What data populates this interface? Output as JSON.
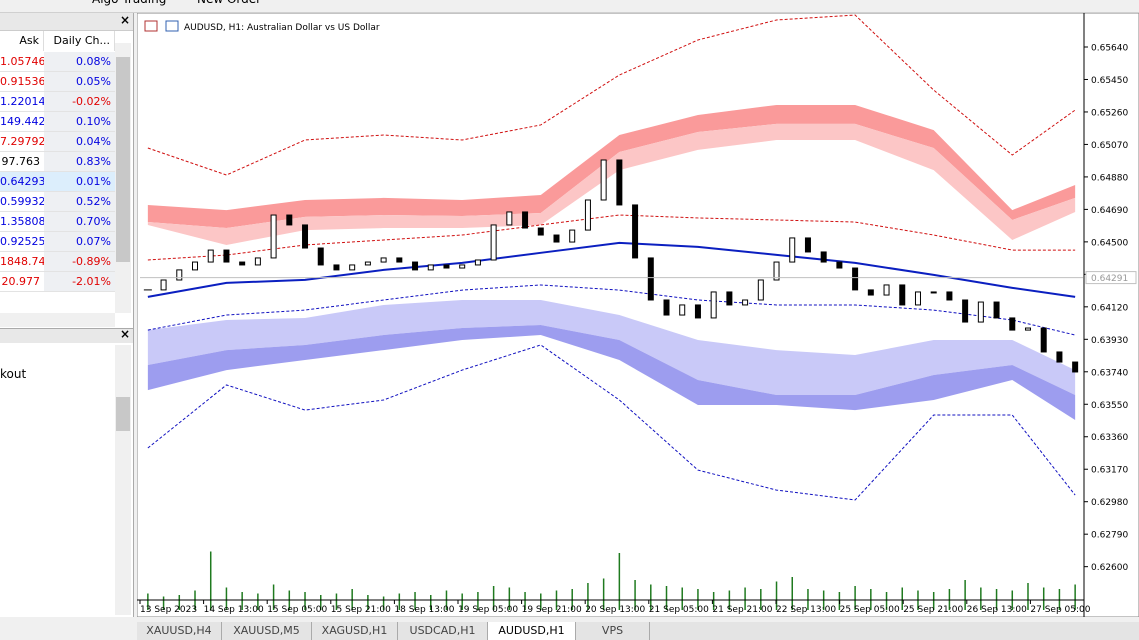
{
  "toolbar": {
    "buttons": [
      "Algo Trading",
      "New Order"
    ]
  },
  "market_watch": {
    "columns": [
      "Ask",
      "Daily Ch..."
    ],
    "selected_row": 6,
    "rows": [
      {
        "ask": "1.05746",
        "change": "0.08%",
        "ask_color": "#e00000",
        "change_color": "#0000e0"
      },
      {
        "ask": "0.91536",
        "change": "0.05%",
        "ask_color": "#e00000",
        "change_color": "#0000e0"
      },
      {
        "ask": "1.22014",
        "change": "-0.02%",
        "ask_color": "#0000e0",
        "change_color": "#e00000"
      },
      {
        "ask": "149.442",
        "change": "0.10%",
        "ask_color": "#0000e0",
        "change_color": "#0000e0"
      },
      {
        "ask": "7.29792",
        "change": "0.04%",
        "ask_color": "#e00000",
        "change_color": "#0000e0"
      },
      {
        "ask": "97.763",
        "change": "0.83%",
        "ask_color": "#000000",
        "change_color": "#0000e0"
      },
      {
        "ask": "0.64293",
        "change": "0.01%",
        "ask_color": "#0000e0",
        "change_color": "#0000e0"
      },
      {
        "ask": "0.59932",
        "change": "0.52%",
        "ask_color": "#0000e0",
        "change_color": "#0000e0"
      },
      {
        "ask": "1.35808",
        "change": "0.70%",
        "ask_color": "#0000e0",
        "change_color": "#0000e0"
      },
      {
        "ask": "0.92525",
        "change": "0.07%",
        "ask_color": "#0000e0",
        "change_color": "#0000e0"
      },
      {
        "ask": "1848.74",
        "change": "-0.89%",
        "ask_color": "#e00000",
        "change_color": "#e00000"
      },
      {
        "ask": "20.977",
        "change": "-2.01%",
        "ask_color": "#e00000",
        "change_color": "#e00000"
      }
    ]
  },
  "navigator": {
    "item": "kout"
  },
  "tabs": {
    "items": [
      "XAUUSD,H4",
      "XAUUSD,M5",
      "XAGUSD,H1",
      "USDCAD,H1",
      "AUDUSD,H1",
      "VPS"
    ],
    "active": 4
  },
  "chart_data": {
    "type": "candlestick",
    "title": "AUDUSD, H1:  Australian Dollar vs US Dollar",
    "ylim": [
      0.62405,
      0.65833
    ],
    "yticks": [
      {
        "value": 0.6564,
        "label": "0.65640"
      },
      {
        "value": 0.6545,
        "label": "0.65450"
      },
      {
        "value": 0.6526,
        "label": "0.65260"
      },
      {
        "value": 0.6507,
        "label": "0.65070"
      },
      {
        "value": 0.6488,
        "label": "0.64880"
      },
      {
        "value": 0.6469,
        "label": "0.64690"
      },
      {
        "value": 0.645,
        "label": "0.64500"
      },
      {
        "value": 0.6431,
        "label": "0.64310"
      },
      {
        "value": 0.6412,
        "label": "0.64120"
      },
      {
        "value": 0.6393,
        "label": "0.63930"
      },
      {
        "value": 0.6374,
        "label": "0.63740"
      },
      {
        "value": 0.6355,
        "label": "0.63550"
      },
      {
        "value": 0.6336,
        "label": "0.63360"
      },
      {
        "value": 0.6317,
        "label": "0.63170"
      },
      {
        "value": 0.6298,
        "label": "0.62980"
      },
      {
        "value": 0.6279,
        "label": "0.62790"
      },
      {
        "value": 0.626,
        "label": "0.62600"
      }
    ],
    "xtick_labels": [
      "13 Sep 2023",
      "14 Sep 13:00",
      "15 Sep 05:00",
      "15 Sep 21:00",
      "18 Sep 13:00",
      "19 Sep 05:00",
      "19 Sep 21:00",
      "20 Sep 13:00",
      "21 Sep 05:00",
      "21 Sep 21:00",
      "22 Sep 13:00",
      "25 Sep 05:00",
      "25 Sep 21:00",
      "26 Sep 13:00",
      "27 Sep 05:00"
    ],
    "current_price": 0.64291,
    "candle_color": "#000000",
    "close": [
      0.64219,
      0.64277,
      0.64336,
      0.64382,
      0.64452,
      0.64382,
      0.64365,
      0.64406,
      0.64657,
      0.64599,
      0.64464,
      0.64365,
      0.64336,
      0.64365,
      0.64382,
      0.64406,
      0.64382,
      0.64336,
      0.64365,
      0.64347,
      0.64365,
      0.64394,
      0.64599,
      0.64675,
      0.64581,
      0.6454,
      0.64499,
      0.64569,
      0.64745,
      0.64979,
      0.64716,
      0.64406,
      0.6416,
      0.64072,
      0.64131,
      0.64055,
      0.64207,
      0.64131,
      0.6416,
      0.64277,
      0.64382,
      0.64523,
      0.64441,
      0.64382,
      0.64347,
      0.64219,
      0.64189,
      0.64248,
      0.64131,
      0.64207,
      0.64207,
      0.6416,
      0.64031,
      0.64148,
      0.64055,
      0.63984,
      0.63996,
      0.63856,
      0.63797,
      0.63739
    ],
    "volume_color": "#1f7a1f",
    "vlim": [
      0,
      4000
    ],
    "volume": [
      1100,
      900,
      1000,
      1300,
      3900,
      1500,
      1200,
      1100,
      1700,
      1300,
      1200,
      1000,
      1100,
      1400,
      1000,
      900,
      1100,
      1200,
      1000,
      1300,
      1100,
      1200,
      1600,
      1500,
      1200,
      1100,
      1300,
      1400,
      1800,
      2100,
      3800,
      2000,
      1700,
      1600,
      1500,
      1400,
      1200,
      1300,
      1500,
      1400,
      1900,
      2200,
      1400,
      1300,
      1200,
      1600,
      1400,
      1200,
      1500,
      1300,
      1200,
      1400,
      2000,
      1500,
      1400,
      1300,
      1800,
      1500,
      1400,
      1700
    ],
    "indicator_x": [
      0,
      5,
      10,
      15,
      20,
      25,
      30,
      35,
      40,
      45,
      50,
      55,
      59
    ],
    "bands": [
      {
        "colors": [
          "#fa9a9a",
          "#fcc6c6"
        ],
        "edges": [
          [
            0.64716,
            0.64686,
            0.64745,
            0.64757,
            0.64745,
            0.64774,
            0.65125,
            0.65242,
            0.65301,
            0.65301,
            0.65154,
            0.64686,
            0.64833
          ],
          [
            0.64616,
            0.64581,
            0.64646,
            0.64657,
            0.64651,
            0.64669,
            0.65026,
            0.65143,
            0.6519,
            0.6519,
            0.65049,
            0.64628,
            0.64757
          ],
          [
            0.64599,
            0.64482,
            0.64569,
            0.64581,
            0.64581,
            0.64599,
            0.6492,
            0.65038,
            0.65096,
            0.65096,
            0.6492,
            0.64511,
            0.64675
          ]
        ]
      },
      {
        "colors": [
          "#c9c9f8",
          "#9d9def"
        ],
        "edges": [
          [
            0.63984,
            0.64043,
            0.64055,
            0.64131,
            0.6416,
            0.6416,
            0.64072,
            0.63926,
            0.63867,
            0.63838,
            0.63926,
            0.63926,
            0.6375
          ],
          [
            0.6378,
            0.63867,
            0.63897,
            0.63955,
            0.63996,
            0.64014,
            0.63926,
            0.63692,
            0.63604,
            0.63604,
            0.63721,
            0.6378,
            0.63604
          ],
          [
            0.63633,
            0.6375,
            0.63809,
            0.63867,
            0.63926,
            0.63955,
            0.63809,
            0.63546,
            0.63546,
            0.63516,
            0.63575,
            0.63692,
            0.63458
          ]
        ]
      }
    ],
    "lines": [
      {
        "color": "#0b1fc0",
        "dashed": false,
        "values": [
          0.64178,
          0.6426,
          0.64278,
          0.64336,
          0.64377,
          0.64436,
          0.64494,
          0.64471,
          0.64424,
          0.64377,
          0.64307,
          0.64231,
          0.64178
        ]
      },
      {
        "color": "#d01010",
        "dashed": true,
        "values": [
          0.65049,
          0.64891,
          0.65096,
          0.65125,
          0.65096,
          0.65184,
          0.65476,
          0.65681,
          0.65798,
          0.65827,
          0.65388,
          0.65008,
          0.65271
        ]
      },
      {
        "color": "#d01010",
        "dashed": true,
        "values": [
          0.64394,
          0.64423,
          0.64482,
          0.64511,
          0.6454,
          0.64599,
          0.64657,
          0.6464,
          0.64628,
          0.64616,
          0.6454,
          0.64452,
          0.64452
        ]
      },
      {
        "color": "#1010c0",
        "dashed": true,
        "values": [
          0.63984,
          0.64072,
          0.64101,
          0.6416,
          0.64218,
          0.64248,
          0.64218,
          0.6416,
          0.64131,
          0.64131,
          0.64101,
          0.64043,
          0.63955
        ]
      },
      {
        "color": "#1010c0",
        "dashed": true,
        "values": [
          0.63294,
          0.63663,
          0.63516,
          0.63575,
          0.6375,
          0.63897,
          0.63575,
          0.63165,
          0.63048,
          0.6299,
          0.63487,
          0.63487,
          0.63019
        ]
      }
    ]
  }
}
